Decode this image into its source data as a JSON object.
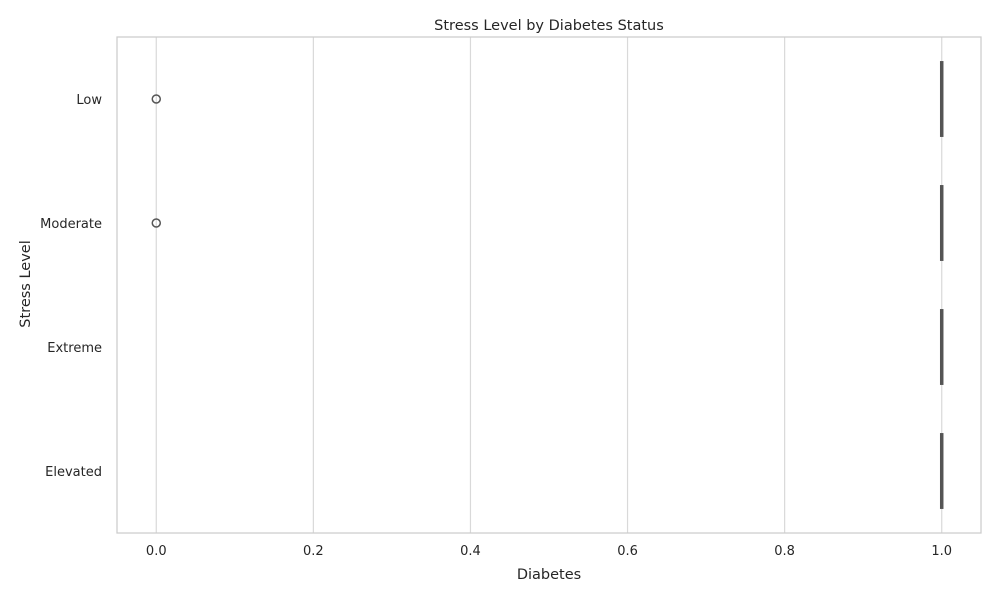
{
  "chart_data": {
    "type": "boxplot",
    "orientation": "horizontal",
    "title": "Stress Level by Diabetes Status",
    "xlabel": "Diabetes",
    "ylabel": "Stress Level",
    "xlim": [
      -0.05,
      1.05
    ],
    "xticks": [
      0.0,
      0.2,
      0.4,
      0.6,
      0.8,
      1.0
    ],
    "xtick_labels": [
      "0.0",
      "0.2",
      "0.4",
      "0.6",
      "0.8",
      "1.0"
    ],
    "categories": [
      "Low",
      "Moderate",
      "Extreme",
      "Elevated"
    ],
    "grid": "vertical",
    "boxes": [
      {
        "category": "Low",
        "whisker_low": 1.0,
        "q1": 1.0,
        "median": 1.0,
        "q3": 1.0,
        "whisker_high": 1.0,
        "outliers": [
          0.0
        ]
      },
      {
        "category": "Moderate",
        "whisker_low": 1.0,
        "q1": 1.0,
        "median": 1.0,
        "q3": 1.0,
        "whisker_high": 1.0,
        "outliers": [
          0.0
        ]
      },
      {
        "category": "Extreme",
        "whisker_low": 1.0,
        "q1": 1.0,
        "median": 1.0,
        "q3": 1.0,
        "whisker_high": 1.0,
        "outliers": []
      },
      {
        "category": "Elevated",
        "whisker_low": 1.0,
        "q1": 1.0,
        "median": 1.0,
        "q3": 1.0,
        "whisker_high": 1.0,
        "outliers": []
      }
    ],
    "colors": {
      "box_line": "#555555",
      "grid": "#d9d9d9",
      "spine": "#cccccc",
      "text": "#262626"
    }
  }
}
